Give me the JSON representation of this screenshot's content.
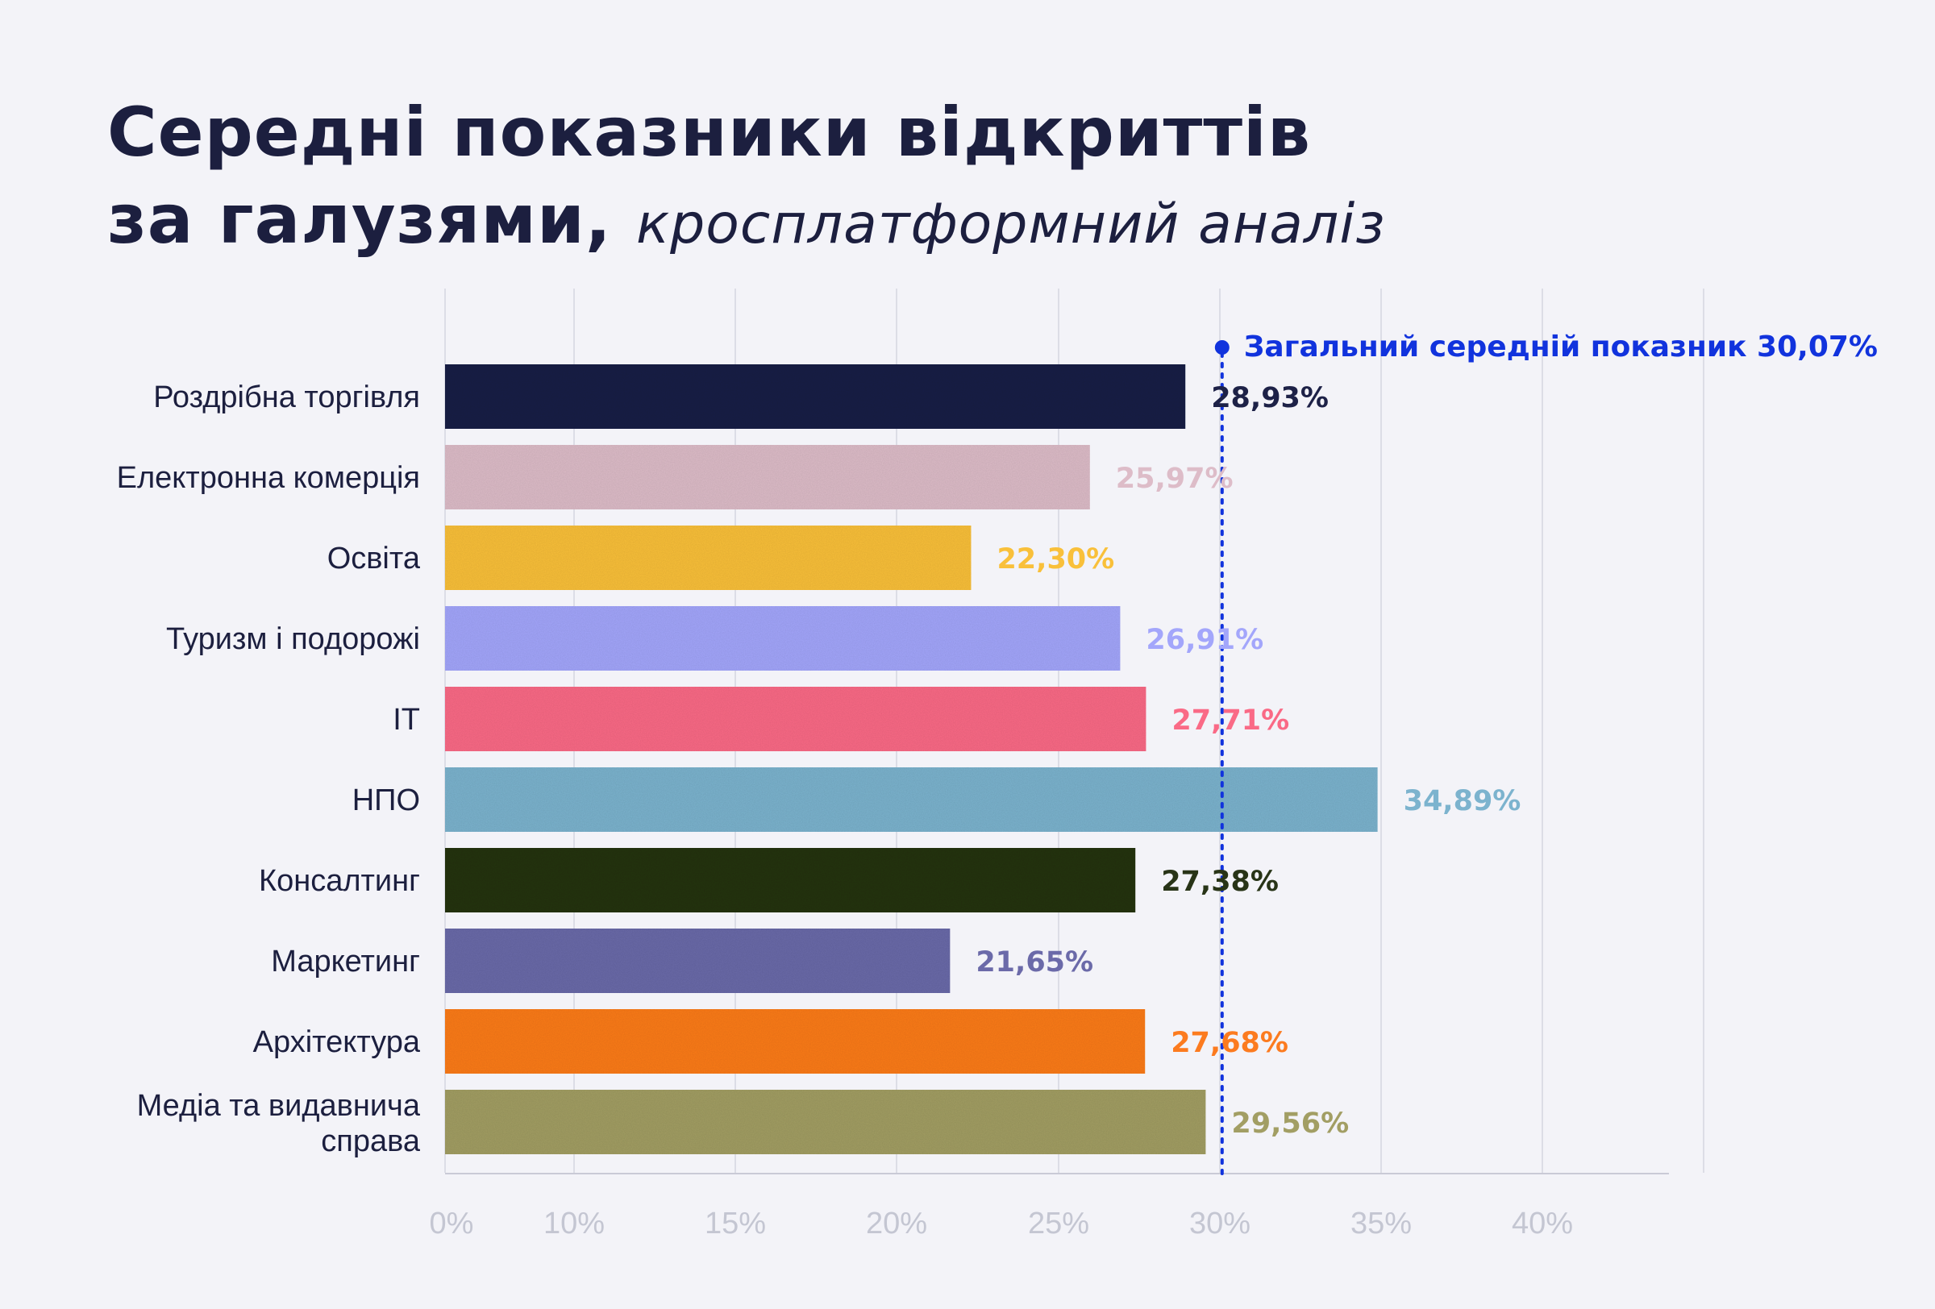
{
  "title": {
    "line1": "Середні показники відкриттів",
    "line2_bold": "за галузями,",
    "line2_italic": "кросплатформний аналіз"
  },
  "chart_data": {
    "type": "bar",
    "orientation": "horizontal",
    "categories": [
      "Роздрібна торгівля",
      "Електронна комерція",
      "Освіта",
      "Туризм і подорожі",
      "ІТ",
      "НПО",
      "Консалтинг",
      "Маркетинг",
      "Архітектура",
      "Медіа та видавнича справа"
    ],
    "category_lines": [
      [
        "Роздрібна торгівля"
      ],
      [
        "Електронна комерція"
      ],
      [
        "Освіта"
      ],
      [
        "Туризм і подорожі"
      ],
      [
        "ІТ"
      ],
      [
        "НПО"
      ],
      [
        "Консалтинг"
      ],
      [
        "Маркетинг"
      ],
      [
        "Архітектура"
      ],
      [
        "Медіа та видавнича",
        "справа"
      ]
    ],
    "values": [
      28.93,
      25.97,
      22.3,
      26.91,
      27.71,
      34.89,
      27.38,
      21.65,
      27.68,
      29.56
    ],
    "value_labels": [
      "28,93%",
      "25,97%",
      "22,30%",
      "26,91%",
      "27,71%",
      "34,89%",
      "27,38%",
      "21,65%",
      "27,68%",
      "29,56%"
    ],
    "bar_colors": [
      "#1d2147",
      "#ddbcc8",
      "#f9c03a",
      "#a3a6fb",
      "#fa6a86",
      "#7cb3ce",
      "#283417",
      "#6b6aa9",
      "#fc7b1f",
      "#a29e64"
    ],
    "label_colors": [
      "#1d2147",
      "#ddbcc8",
      "#f9c03a",
      "#a3a6fb",
      "#fa6a86",
      "#7cb3ce",
      "#283417",
      "#6b6aa9",
      "#fc7b1f",
      "#a29e64"
    ],
    "x_ticks": [
      {
        "value": 0,
        "label": "0%"
      },
      {
        "value": 10,
        "label": "10%"
      },
      {
        "value": 15,
        "label": "15%"
      },
      {
        "value": 20,
        "label": "20%"
      },
      {
        "value": 25,
        "label": "25%"
      },
      {
        "value": 30,
        "label": "30%"
      },
      {
        "value": 35,
        "label": "35%"
      },
      {
        "value": 40,
        "label": "40%"
      }
    ],
    "xlim": [
      0,
      45
    ],
    "grid": true,
    "reference_line": {
      "value": 30.07,
      "label": "Загальний середній показник 30,07%",
      "color": "#1133dd"
    }
  }
}
